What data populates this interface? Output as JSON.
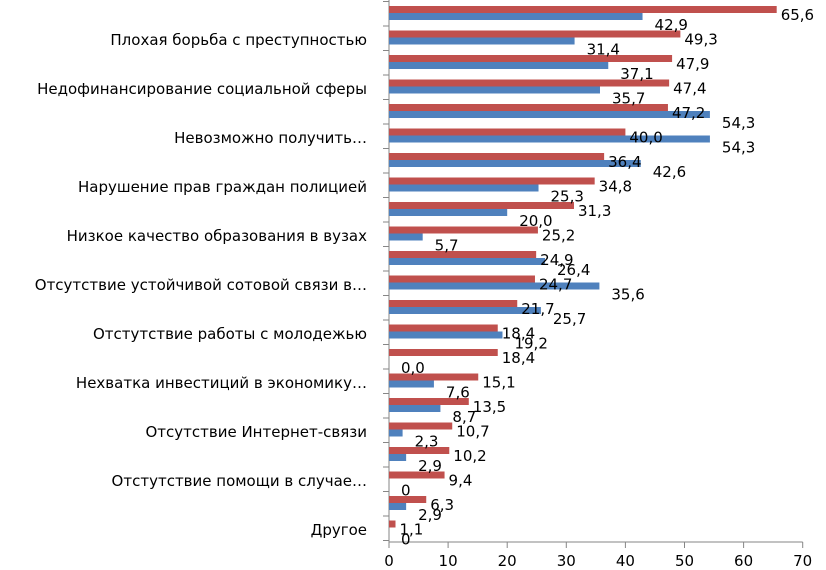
{
  "chart_data": {
    "type": "bar",
    "orientation": "horizontal",
    "title": "",
    "xlabel": "",
    "ylabel": "",
    "xlim": [
      0,
      70
    ],
    "xticks": [
      0,
      10,
      20,
      30,
      40,
      50,
      60,
      70
    ],
    "colors": {
      "red": "#c0504d",
      "blue": "#4f81bd"
    },
    "labeled_categories": [
      "Плохая борьба с преступностью",
      "Недофинансирование социальной сферы",
      "Невозможно получить…",
      "Нарушение прав граждан полицией",
      "Низкое качество образования в вузах",
      "Отсутствие устойчивой сотовой связи в…",
      "Отстутствие работы с молодежью",
      "Нехватка инвестиций в экономику…",
      "Отсутствие Интернет-связи",
      "Отстутствие помощи в случае…",
      "Другое"
    ],
    "series": [
      {
        "name": "red",
        "values": [
          65.6,
          49.3,
          47.9,
          47.4,
          47.2,
          40.0,
          36.4,
          34.8,
          31.3,
          25.2,
          24.9,
          24.7,
          21.7,
          18.4,
          18.4,
          15.1,
          13.5,
          10.7,
          10.2,
          9.4,
          6.3,
          1.1
        ],
        "labels": [
          "65,6",
          "49,3",
          "47,9",
          "47,4",
          "47,2",
          "40,0",
          "36,4",
          "34,8",
          "31,3",
          "25,2",
          "24,9",
          "24,7",
          "21,7",
          "18,4",
          "18,4",
          "15,1",
          "13,5",
          "10,7",
          "10,2",
          "9,4",
          "6,3",
          "1,1"
        ]
      },
      {
        "name": "blue",
        "values": [
          42.9,
          31.4,
          37.1,
          35.7,
          54.3,
          54.3,
          42.6,
          25.3,
          20.0,
          5.7,
          26.4,
          35.6,
          25.7,
          19.2,
          0.0,
          7.6,
          8.7,
          2.3,
          2.9,
          0,
          2.9,
          0
        ],
        "labels": [
          "42,9",
          "31,4",
          "37,1",
          "35,7",
          "54,3",
          "54,3",
          "42,6",
          "25,3",
          "20,0",
          "5,7",
          "26,4",
          "35,6",
          "25,7",
          "19,2",
          "0,0",
          "7,6",
          "8,7",
          "2,3",
          "2,9",
          "0",
          "2,9",
          "0"
        ]
      }
    ]
  }
}
